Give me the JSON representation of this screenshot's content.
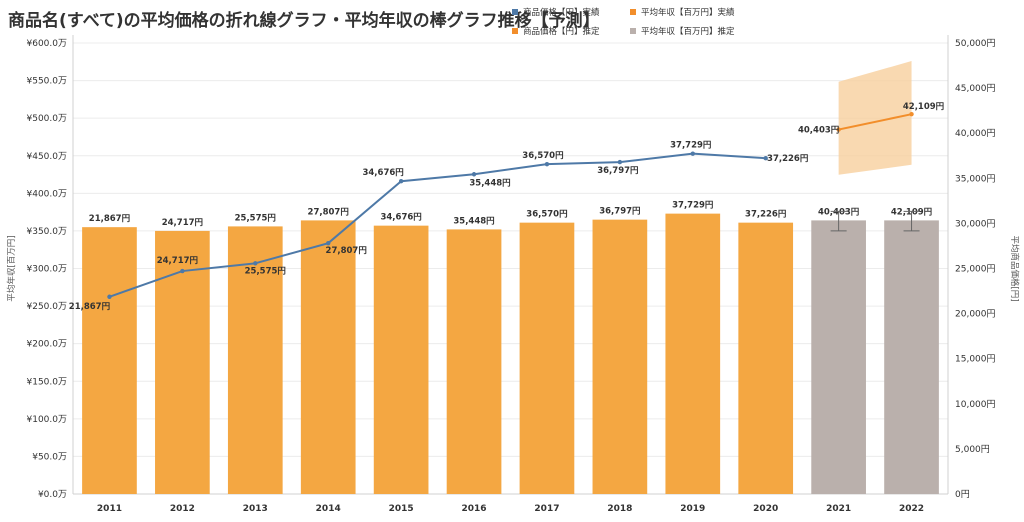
{
  "title": "商品名(すべて)の平均価格の折れ線グラフ・平均年収の棒グラフ推移【予測】",
  "legend": [
    {
      "label": "商品価格【円】実績",
      "color": "#4e79a7"
    },
    {
      "label": "平均年収【百万円】実績",
      "color": "#f28e2b"
    },
    {
      "label": "商品価格【円】推定",
      "color": "#f28e2b"
    },
    {
      "label": "平均年収【百万円】推定",
      "color": "#bab0ac"
    }
  ],
  "chart_data": {
    "type": "bar+line",
    "categories": [
      "2011",
      "2012",
      "2013",
      "2014",
      "2015",
      "2016",
      "2017",
      "2018",
      "2019",
      "2020",
      "2021",
      "2022"
    ],
    "left_axis": {
      "label": "平均年収[百万円]",
      "ticks": [
        "¥0.0万",
        "¥50.0万",
        "¥100.0万",
        "¥150.0万",
        "¥200.0万",
        "¥250.0万",
        "¥300.0万",
        "¥350.0万",
        "¥400.0万",
        "¥450.0万",
        "¥500.0万",
        "¥550.0万",
        "¥600.0万"
      ],
      "ylim": [
        0,
        600
      ]
    },
    "right_axis": {
      "label": "平均商品価格[円]",
      "ticks": [
        "0円",
        "5,000円",
        "10,000円",
        "15,000円",
        "20,000円",
        "25,000円",
        "30,000円",
        "35,000円",
        "40,000円",
        "45,000円",
        "50,000円"
      ],
      "ylim": [
        0,
        50000
      ]
    },
    "bars": {
      "values": [
        355,
        350,
        356,
        364,
        357,
        352,
        361,
        365,
        373,
        361,
        364,
        364
      ],
      "colors": [
        "#f4a742",
        "#f4a742",
        "#f4a742",
        "#f4a742",
        "#f4a742",
        "#f4a742",
        "#f4a742",
        "#f4a742",
        "#f4a742",
        "#f4a742",
        "#bab0ac",
        "#bab0ac"
      ],
      "labels": [
        "21,867円",
        "24,717円",
        "25,575円",
        "27,807円",
        "34,676円",
        "35,448円",
        "36,570円",
        "36,797円",
        "37,729円",
        "37,226円",
        "40,403円",
        "42,109円"
      ],
      "error_bars": [
        null,
        null,
        null,
        null,
        null,
        null,
        null,
        null,
        null,
        null,
        [
          350,
          376
        ],
        [
          350,
          376
        ]
      ]
    },
    "line_actual": {
      "name": "商品価格【円】実績",
      "color": "#4e79a7",
      "values": [
        21867,
        24717,
        25575,
        27807,
        34676,
        35448,
        36570,
        36797,
        37729,
        37226
      ],
      "labels": [
        "21,867円",
        "24,717円",
        "25,575円",
        "27,807円",
        "34,676円",
        "35,448円",
        "36,570円",
        "36,797円",
        "37,729円",
        "37,226円"
      ]
    },
    "line_forecast": {
      "name": "商品価格【円】推定",
      "color": "#f28e2b",
      "categories": [
        "2021",
        "2022"
      ],
      "values": [
        40403,
        42109
      ],
      "labels": [
        "40,403円",
        "42,109円"
      ],
      "band_low": [
        35400,
        36500
      ],
      "band_high": [
        45700,
        48000
      ]
    }
  }
}
